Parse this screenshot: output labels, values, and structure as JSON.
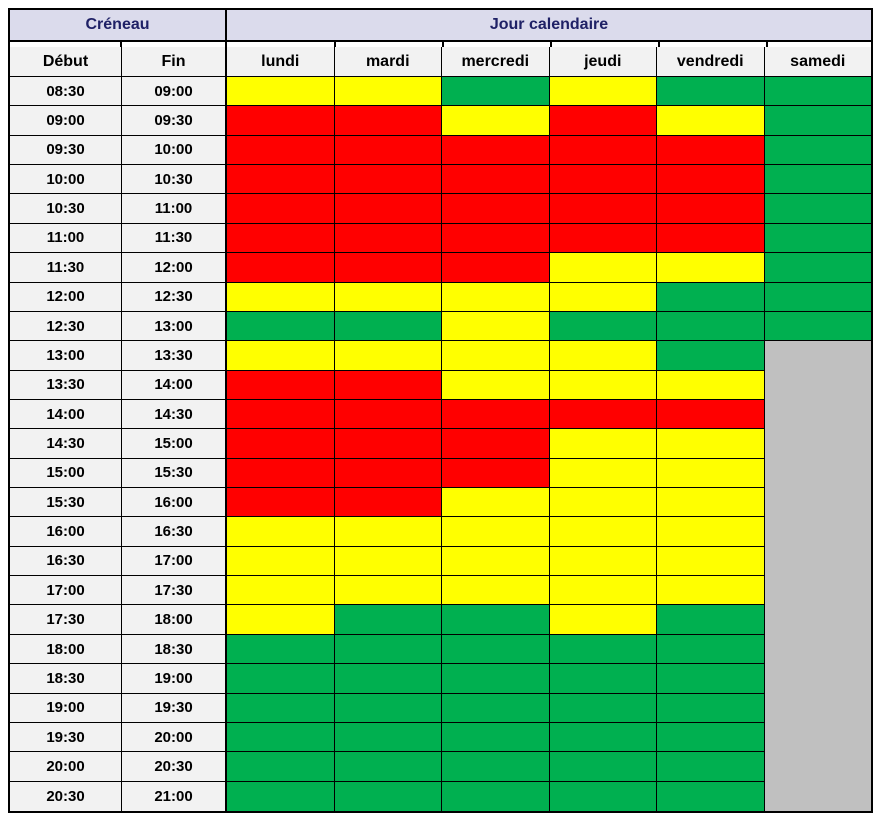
{
  "table": {
    "header_groups": [
      {
        "label": "Créneau",
        "span": 2
      },
      {
        "label": "Jour calendaire",
        "span": 6
      }
    ],
    "columns": [
      "Début",
      "Fin",
      "lundi",
      "mardi",
      "mercredi",
      "jeudi",
      "vendredi",
      "samedi"
    ]
  },
  "colors": {
    "header_band_bg": "#DBDBEC",
    "header_band_text": "#1F2166",
    "subheader_bg": "#F2F2F2",
    "time_cell_bg": "#F2F2F2",
    "busy_red": "#FF0000",
    "medium_yellow": "#FFFF00",
    "free_green": "#00B050",
    "closed_gray": "#C0C0C0",
    "border": "#000000"
  },
  "chart_data": {
    "type": "heatmap",
    "title": "Créneau / Jour calendaire availability grid",
    "xlabel": "Jour calendaire",
    "ylabel": "Créneau",
    "days": [
      "lundi",
      "mardi",
      "mercredi",
      "jeudi",
      "vendredi",
      "samedi"
    ],
    "legend": {
      "R": "#FF0000",
      "Y": "#FFFF00",
      "G": "#00B050",
      "X": "#C0C0C0"
    },
    "legend_meaning": {
      "R": "red",
      "Y": "yellow",
      "G": "green",
      "X": "gray-no-data"
    },
    "rows": [
      {
        "debut": "08:30",
        "fin": "09:00",
        "cells": [
          "Y",
          "Y",
          "G",
          "Y",
          "G",
          "G"
        ]
      },
      {
        "debut": "09:00",
        "fin": "09:30",
        "cells": [
          "R",
          "R",
          "Y",
          "R",
          "Y",
          "G"
        ]
      },
      {
        "debut": "09:30",
        "fin": "10:00",
        "cells": [
          "R",
          "R",
          "R",
          "R",
          "R",
          "G"
        ]
      },
      {
        "debut": "10:00",
        "fin": "10:30",
        "cells": [
          "R",
          "R",
          "R",
          "R",
          "R",
          "G"
        ]
      },
      {
        "debut": "10:30",
        "fin": "11:00",
        "cells": [
          "R",
          "R",
          "R",
          "R",
          "R",
          "G"
        ]
      },
      {
        "debut": "11:00",
        "fin": "11:30",
        "cells": [
          "R",
          "R",
          "R",
          "R",
          "R",
          "G"
        ]
      },
      {
        "debut": "11:30",
        "fin": "12:00",
        "cells": [
          "R",
          "R",
          "R",
          "Y",
          "Y",
          "G"
        ]
      },
      {
        "debut": "12:00",
        "fin": "12:30",
        "cells": [
          "Y",
          "Y",
          "Y",
          "Y",
          "G",
          "G"
        ]
      },
      {
        "debut": "12:30",
        "fin": "13:00",
        "cells": [
          "G",
          "G",
          "Y",
          "G",
          "G",
          "G"
        ]
      },
      {
        "debut": "13:00",
        "fin": "13:30",
        "cells": [
          "Y",
          "Y",
          "Y",
          "Y",
          "G",
          "X"
        ]
      },
      {
        "debut": "13:30",
        "fin": "14:00",
        "cells": [
          "R",
          "R",
          "Y",
          "Y",
          "Y",
          "X"
        ]
      },
      {
        "debut": "14:00",
        "fin": "14:30",
        "cells": [
          "R",
          "R",
          "R",
          "R",
          "R",
          "X"
        ]
      },
      {
        "debut": "14:30",
        "fin": "15:00",
        "cells": [
          "R",
          "R",
          "R",
          "Y",
          "Y",
          "X"
        ]
      },
      {
        "debut": "15:00",
        "fin": "15:30",
        "cells": [
          "R",
          "R",
          "R",
          "Y",
          "Y",
          "X"
        ]
      },
      {
        "debut": "15:30",
        "fin": "16:00",
        "cells": [
          "R",
          "R",
          "Y",
          "Y",
          "Y",
          "X"
        ]
      },
      {
        "debut": "16:00",
        "fin": "16:30",
        "cells": [
          "Y",
          "Y",
          "Y",
          "Y",
          "Y",
          "X"
        ]
      },
      {
        "debut": "16:30",
        "fin": "17:00",
        "cells": [
          "Y",
          "Y",
          "Y",
          "Y",
          "Y",
          "X"
        ]
      },
      {
        "debut": "17:00",
        "fin": "17:30",
        "cells": [
          "Y",
          "Y",
          "Y",
          "Y",
          "Y",
          "X"
        ]
      },
      {
        "debut": "17:30",
        "fin": "18:00",
        "cells": [
          "Y",
          "G",
          "G",
          "Y",
          "G",
          "X"
        ]
      },
      {
        "debut": "18:00",
        "fin": "18:30",
        "cells": [
          "G",
          "G",
          "G",
          "G",
          "G",
          "X"
        ]
      },
      {
        "debut": "18:30",
        "fin": "19:00",
        "cells": [
          "G",
          "G",
          "G",
          "G",
          "G",
          "X"
        ]
      },
      {
        "debut": "19:00",
        "fin": "19:30",
        "cells": [
          "G",
          "G",
          "G",
          "G",
          "G",
          "X"
        ]
      },
      {
        "debut": "19:30",
        "fin": "20:00",
        "cells": [
          "G",
          "G",
          "G",
          "G",
          "G",
          "X"
        ]
      },
      {
        "debut": "20:00",
        "fin": "20:30",
        "cells": [
          "G",
          "G",
          "G",
          "G",
          "G",
          "X"
        ]
      },
      {
        "debut": "20:30",
        "fin": "21:00",
        "cells": [
          "G",
          "G",
          "G",
          "G",
          "G",
          "X"
        ]
      }
    ]
  }
}
